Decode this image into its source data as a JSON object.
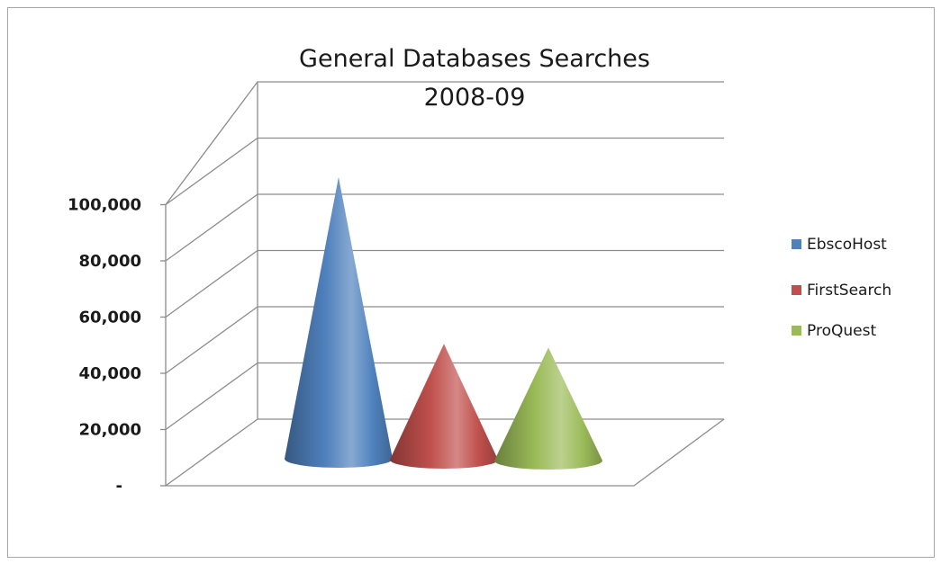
{
  "chart_data": {
    "type": "bar",
    "style": "3d-cone",
    "title_lines": [
      "General Databases Searches",
      "2008-09"
    ],
    "xlabel": "",
    "ylabel": "",
    "ylim": [
      0,
      100000
    ],
    "y_ticks": [
      0,
      20000,
      40000,
      60000,
      80000,
      100000
    ],
    "y_tick_labels": [
      "-",
      "20,000",
      "40,000",
      "60,000",
      "80,000",
      "100,000"
    ],
    "grid": true,
    "legend_position": "right",
    "series": [
      {
        "name": "EbscoHost",
        "value": 97000,
        "color": "#4f81bd"
      },
      {
        "name": "FirstSearch",
        "value": 38000,
        "color": "#c0504d"
      },
      {
        "name": "ProQuest",
        "value": 37000,
        "color": "#9bbb59"
      }
    ]
  }
}
